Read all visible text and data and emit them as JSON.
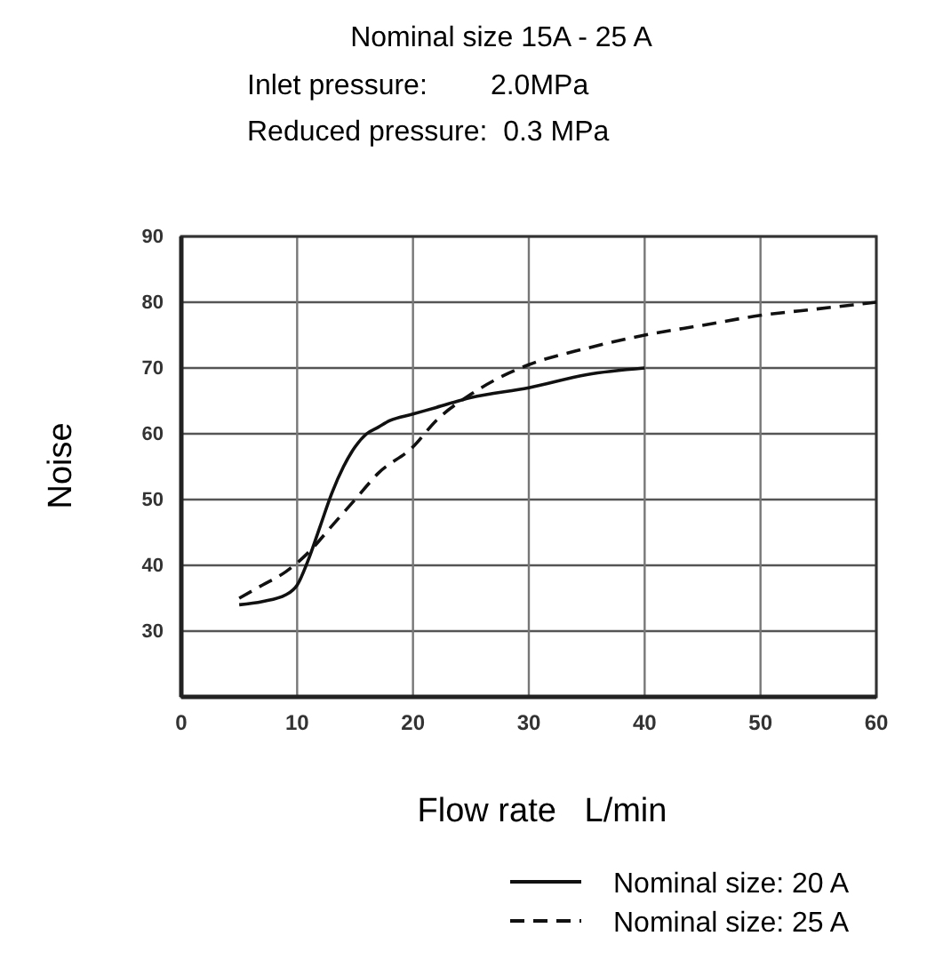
{
  "chart_data": {
    "type": "line",
    "title": "Nominal size 15A - 25 A",
    "annotations": [
      "Inlet pressure:        2.0MPa",
      "Reduced pressure:  0.3 MPa"
    ],
    "xlabel": "Flow rate   L/min",
    "ylabel": "Noise",
    "xlim": [
      0,
      60
    ],
    "xticks": [
      0,
      10,
      20,
      30,
      40,
      50,
      60
    ],
    "ylim": [
      20,
      90
    ],
    "yticks": [
      30,
      40,
      50,
      60,
      70,
      80,
      90
    ],
    "grid": true,
    "legend": "bottom right",
    "marker": "none",
    "series": [
      {
        "name": "Nominal size: 20 A",
        "color": "#111111",
        "line_style": "solid",
        "x": [
          5,
          7,
          9,
          10,
          11,
          12,
          13,
          14,
          15,
          16,
          17,
          18,
          20,
          22,
          25,
          30,
          35,
          40
        ],
        "values": [
          34,
          34.5,
          35.5,
          37,
          41,
          46,
          51,
          55,
          58,
          60,
          61,
          62,
          63,
          64,
          65.5,
          67,
          69,
          70
        ]
      },
      {
        "name": "Nominal size: 25 A",
        "color": "#111111",
        "line_style": "dashed",
        "x": [
          5,
          7,
          9,
          11,
          13,
          15,
          17,
          20,
          22,
          25,
          28,
          30,
          35,
          40,
          45,
          50,
          55,
          60
        ],
        "values": [
          35,
          37,
          39,
          42,
          46,
          50,
          54,
          58,
          62,
          66,
          69,
          70.5,
          73,
          75,
          76.5,
          78,
          79,
          80
        ]
      }
    ]
  }
}
